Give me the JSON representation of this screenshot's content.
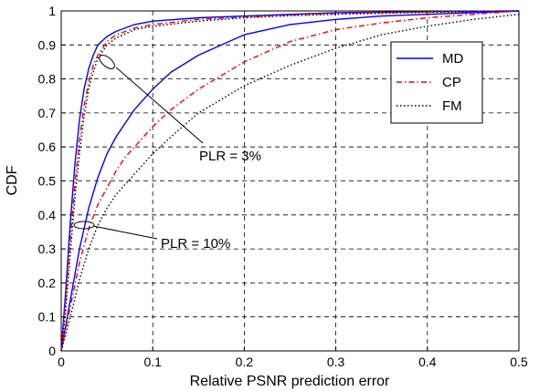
{
  "chart_data": {
    "type": "line",
    "title": "",
    "xlabel": "Relative PSNR prediction error",
    "ylabel": "CDF",
    "xlim": [
      0,
      0.5
    ],
    "ylim": [
      0,
      1
    ],
    "grid": true,
    "legend_position": "top-right",
    "x_ticks": [
      "0",
      "0.1",
      "0.2",
      "0.3",
      "0.4",
      "0.5"
    ],
    "y_ticks": [
      "0",
      "0.1",
      "0.2",
      "0.3",
      "0.4",
      "0.5",
      "0.6",
      "0.7",
      "0.8",
      "0.9",
      "1"
    ],
    "series": [
      {
        "name": "MD",
        "color": "#0000ff",
        "dash": "solid",
        "group": "PLR = 3%",
        "x": [
          0,
          0.005,
          0.01,
          0.015,
          0.02,
          0.025,
          0.03,
          0.035,
          0.04,
          0.05,
          0.06,
          0.08,
          0.1,
          0.15,
          0.2,
          0.25,
          0.3,
          0.4,
          0.5
        ],
        "y": [
          0,
          0.18,
          0.38,
          0.55,
          0.68,
          0.77,
          0.83,
          0.87,
          0.9,
          0.925,
          0.94,
          0.96,
          0.97,
          0.98,
          0.985,
          0.99,
          0.995,
          0.998,
          1.0
        ]
      },
      {
        "name": "CP",
        "color": "#ff0000",
        "dash": "dashdot",
        "group": "PLR = 3%",
        "x": [
          0,
          0.005,
          0.01,
          0.015,
          0.02,
          0.025,
          0.03,
          0.035,
          0.04,
          0.05,
          0.06,
          0.08,
          0.1,
          0.15,
          0.2,
          0.25,
          0.3,
          0.4,
          0.5
        ],
        "y": [
          0,
          0.15,
          0.33,
          0.49,
          0.62,
          0.72,
          0.79,
          0.84,
          0.87,
          0.91,
          0.93,
          0.95,
          0.96,
          0.975,
          0.982,
          0.988,
          0.993,
          0.997,
          1.0
        ]
      },
      {
        "name": "FM",
        "color": "#000000",
        "dash": "dotted",
        "group": "PLR = 3%",
        "x": [
          0,
          0.005,
          0.01,
          0.015,
          0.02,
          0.025,
          0.03,
          0.035,
          0.04,
          0.05,
          0.06,
          0.08,
          0.1,
          0.15,
          0.2,
          0.25,
          0.3,
          0.4,
          0.5
        ],
        "y": [
          0,
          0.12,
          0.29,
          0.45,
          0.58,
          0.69,
          0.77,
          0.82,
          0.86,
          0.9,
          0.92,
          0.945,
          0.955,
          0.97,
          0.98,
          0.986,
          0.99,
          0.996,
          1.0
        ]
      },
      {
        "name": "MD",
        "color": "#0000ff",
        "dash": "solid",
        "group": "PLR = 10%",
        "x": [
          0,
          0.01,
          0.02,
          0.03,
          0.04,
          0.05,
          0.06,
          0.07,
          0.08,
          0.1,
          0.12,
          0.15,
          0.2,
          0.25,
          0.3,
          0.35,
          0.4,
          0.45,
          0.5
        ],
        "y": [
          0,
          0.15,
          0.3,
          0.42,
          0.51,
          0.58,
          0.63,
          0.67,
          0.71,
          0.77,
          0.82,
          0.87,
          0.93,
          0.96,
          0.975,
          0.985,
          0.99,
          0.995,
          1.0
        ]
      },
      {
        "name": "CP",
        "color": "#ff0000",
        "dash": "dashdot",
        "group": "PLR = 10%",
        "x": [
          0,
          0.01,
          0.02,
          0.03,
          0.04,
          0.05,
          0.06,
          0.07,
          0.08,
          0.1,
          0.12,
          0.15,
          0.2,
          0.25,
          0.3,
          0.35,
          0.4,
          0.45,
          0.5
        ],
        "y": [
          0,
          0.13,
          0.26,
          0.36,
          0.43,
          0.48,
          0.53,
          0.57,
          0.6,
          0.66,
          0.71,
          0.77,
          0.85,
          0.91,
          0.945,
          0.965,
          0.98,
          0.99,
          1.0
        ]
      },
      {
        "name": "FM",
        "color": "#000000",
        "dash": "dotted",
        "group": "PLR = 10%",
        "x": [
          0,
          0.01,
          0.02,
          0.03,
          0.04,
          0.05,
          0.06,
          0.07,
          0.08,
          0.1,
          0.12,
          0.15,
          0.2,
          0.25,
          0.3,
          0.35,
          0.4,
          0.45,
          0.5
        ],
        "y": [
          0,
          0.1,
          0.21,
          0.3,
          0.37,
          0.42,
          0.46,
          0.49,
          0.52,
          0.58,
          0.63,
          0.7,
          0.78,
          0.84,
          0.89,
          0.93,
          0.955,
          0.975,
          0.99
        ]
      }
    ],
    "legend": [
      "MD",
      "CP",
      "FM"
    ],
    "annotations": [
      {
        "text": "PLR = 3%",
        "point": [
          0.05,
          0.85
        ]
      },
      {
        "text": "PLR = 10%",
        "point": [
          0.025,
          0.37
        ]
      }
    ]
  }
}
